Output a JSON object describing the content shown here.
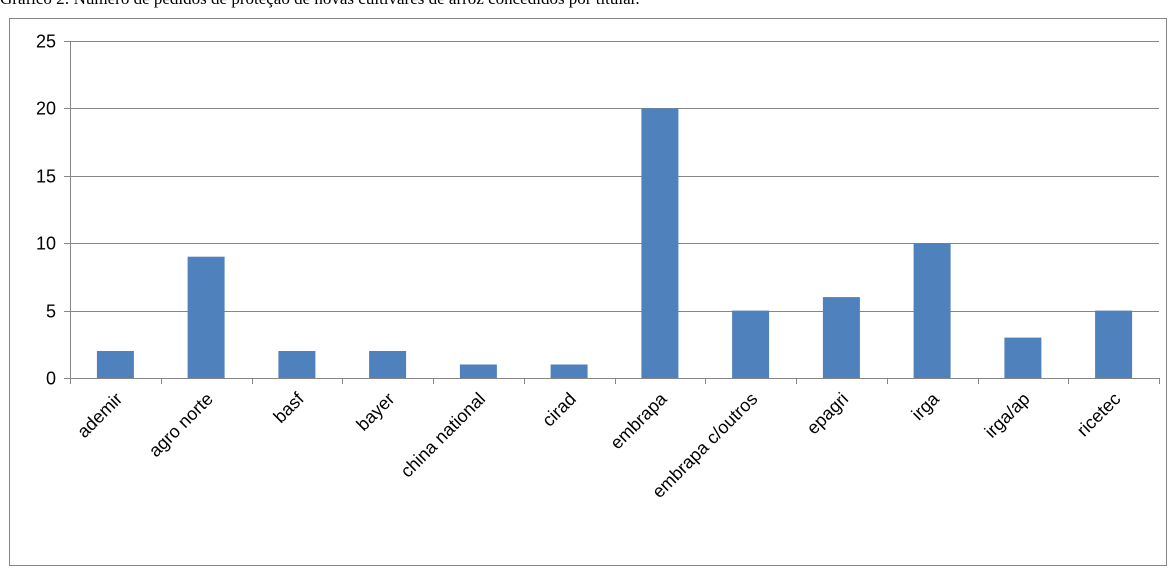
{
  "caption": "Gráfico 2: Número de pedidos de proteção de novas cultivares de arroz concedidos por titular.",
  "chart_data": {
    "type": "bar",
    "categories": [
      "ademir",
      "agro norte",
      "basf",
      "bayer",
      "china national",
      "cirad",
      "embrapa",
      "embrapa c/outros",
      "epagri",
      "irga",
      "irga/ap",
      "ricetec"
    ],
    "values": [
      2,
      9,
      2,
      2,
      1,
      1,
      20,
      5,
      6,
      10,
      3,
      5
    ],
    "yticks": [
      "0",
      "5",
      "10",
      "15",
      "20",
      "25"
    ],
    "ylim": [
      0,
      25
    ],
    "grid": true,
    "bar_color": "#4f81bd",
    "gridline_color": "#868686",
    "legend": "none"
  }
}
